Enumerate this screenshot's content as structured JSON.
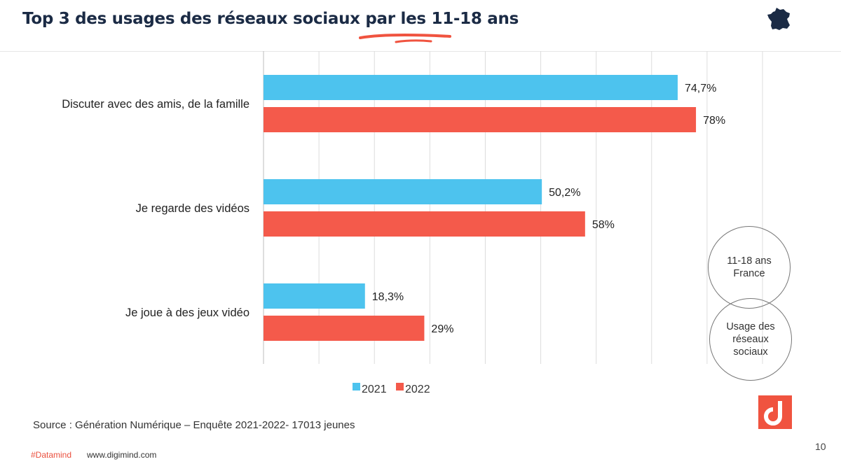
{
  "header": {
    "title": "Top 3 des usages des réseaux sociaux par les 11-18 ans"
  },
  "badges": {
    "scope": "11-18 ans France",
    "topic": "Usage des réseaux sociaux"
  },
  "footer": {
    "source": "Source : Génération Numérique – Enquête 2021-2022- 17013 jeunes",
    "hashtag": "#Datamind",
    "url": "www.digimind.com",
    "page_number": "10"
  },
  "colors": {
    "series_2021": "#4dc3ee",
    "series_2022": "#f45a4b",
    "title": "#1b2b45",
    "accent": "#f0533f"
  },
  "icons": [
    "france-map-icon",
    "digimind-logo-icon"
  ],
  "chart_data": {
    "type": "bar",
    "orientation": "horizontal",
    "categories": [
      "Discuter avec des amis, de la  famille",
      "Je regarde des vidéos",
      "Je joue à des jeux vidéo"
    ],
    "series": [
      {
        "name": "2021",
        "values": [
          74.7,
          50.2,
          18.3
        ],
        "labels": [
          "74,7%",
          "50,2%",
          "18,3%"
        ]
      },
      {
        "name": "2022",
        "values": [
          78,
          58,
          29
        ],
        "labels": [
          "78%",
          "58%",
          "29%"
        ]
      }
    ],
    "xlim": [
      0,
      90
    ],
    "grid": true,
    "legend_position": "bottom"
  }
}
